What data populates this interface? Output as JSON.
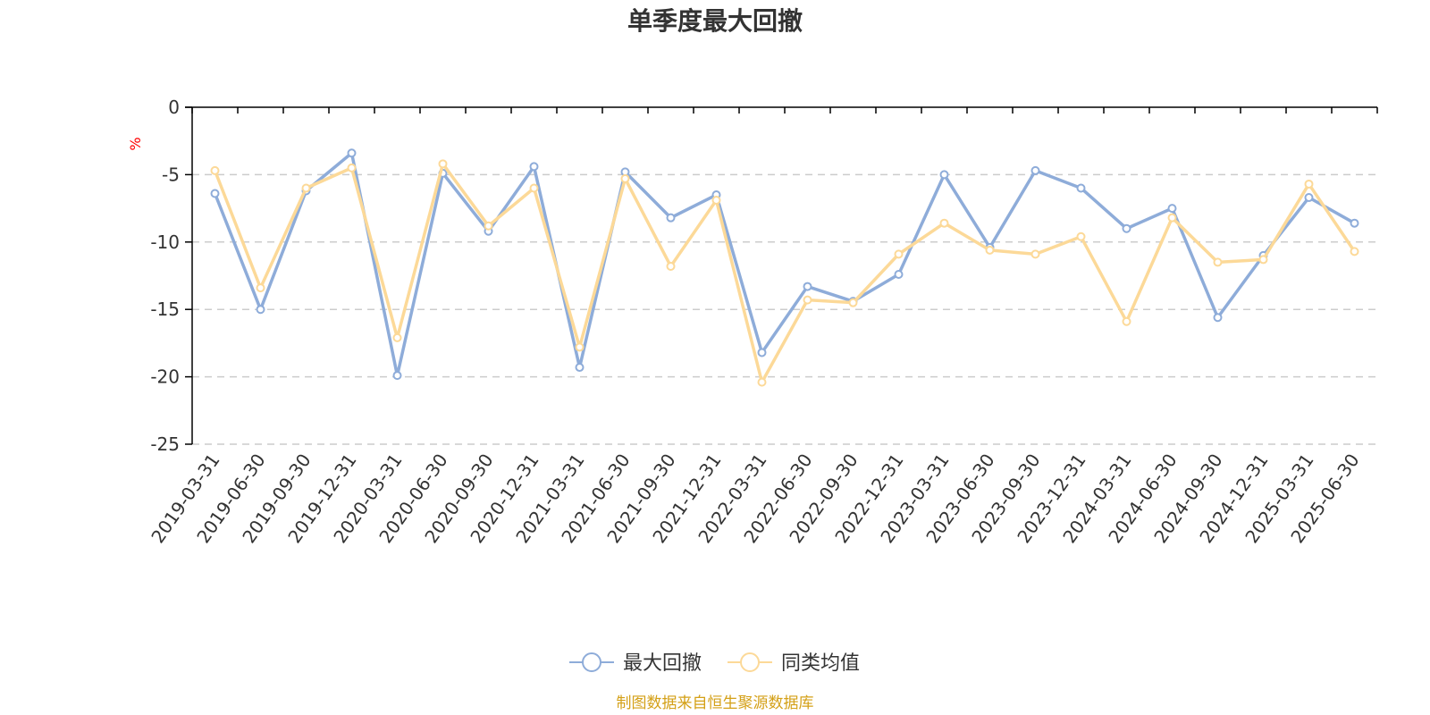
{
  "chart_data": {
    "type": "line",
    "title": "单季度最大回撤",
    "ylabel": "%",
    "ylim": [
      -25,
      0
    ],
    "yticks": [
      0,
      -5,
      -10,
      -15,
      -20,
      -25
    ],
    "grid": true,
    "legend_position": "bottom-center",
    "categories": [
      "2019-03-31",
      "2019-06-30",
      "2019-09-30",
      "2019-12-31",
      "2020-03-31",
      "2020-06-30",
      "2020-09-30",
      "2020-12-31",
      "2021-03-31",
      "2021-06-30",
      "2021-09-30",
      "2021-12-31",
      "2022-03-31",
      "2022-06-30",
      "2022-09-30",
      "2022-12-31",
      "2023-03-31",
      "2023-06-30",
      "2023-09-30",
      "2023-12-31",
      "2024-03-31",
      "2024-06-30",
      "2024-09-30",
      "2024-12-31",
      "2025-03-31",
      "2025-06-30"
    ],
    "series": [
      {
        "name": "最大回撤",
        "color": "#8eacd9",
        "values": [
          -6.4,
          -15.0,
          -6.2,
          -3.4,
          -19.9,
          -4.9,
          -9.2,
          -4.4,
          -19.3,
          -4.8,
          -8.2,
          -6.5,
          -18.2,
          -13.3,
          -14.4,
          -12.4,
          -5.0,
          -10.4,
          -4.7,
          -6.0,
          -9.0,
          -7.5,
          -15.6,
          -11.0,
          -6.7,
          -8.6
        ]
      },
      {
        "name": "同类均值",
        "color": "#fcd998",
        "values": [
          -4.7,
          -13.4,
          -6.0,
          -4.5,
          -17.1,
          -4.2,
          -8.8,
          -6.0,
          -17.8,
          -5.3,
          -11.8,
          -6.9,
          -20.4,
          -14.3,
          -14.5,
          -10.9,
          -8.6,
          -10.6,
          -10.9,
          -9.6,
          -15.9,
          -8.2,
          -11.5,
          -11.3,
          -5.7,
          -10.7
        ]
      }
    ]
  },
  "source_text": "制图数据来自恒生聚源数据库",
  "colors": {
    "axis": "#000000",
    "grid": "#cccccc",
    "unit": "#ff0000",
    "source": "#d4a017",
    "text": "#333333"
  }
}
